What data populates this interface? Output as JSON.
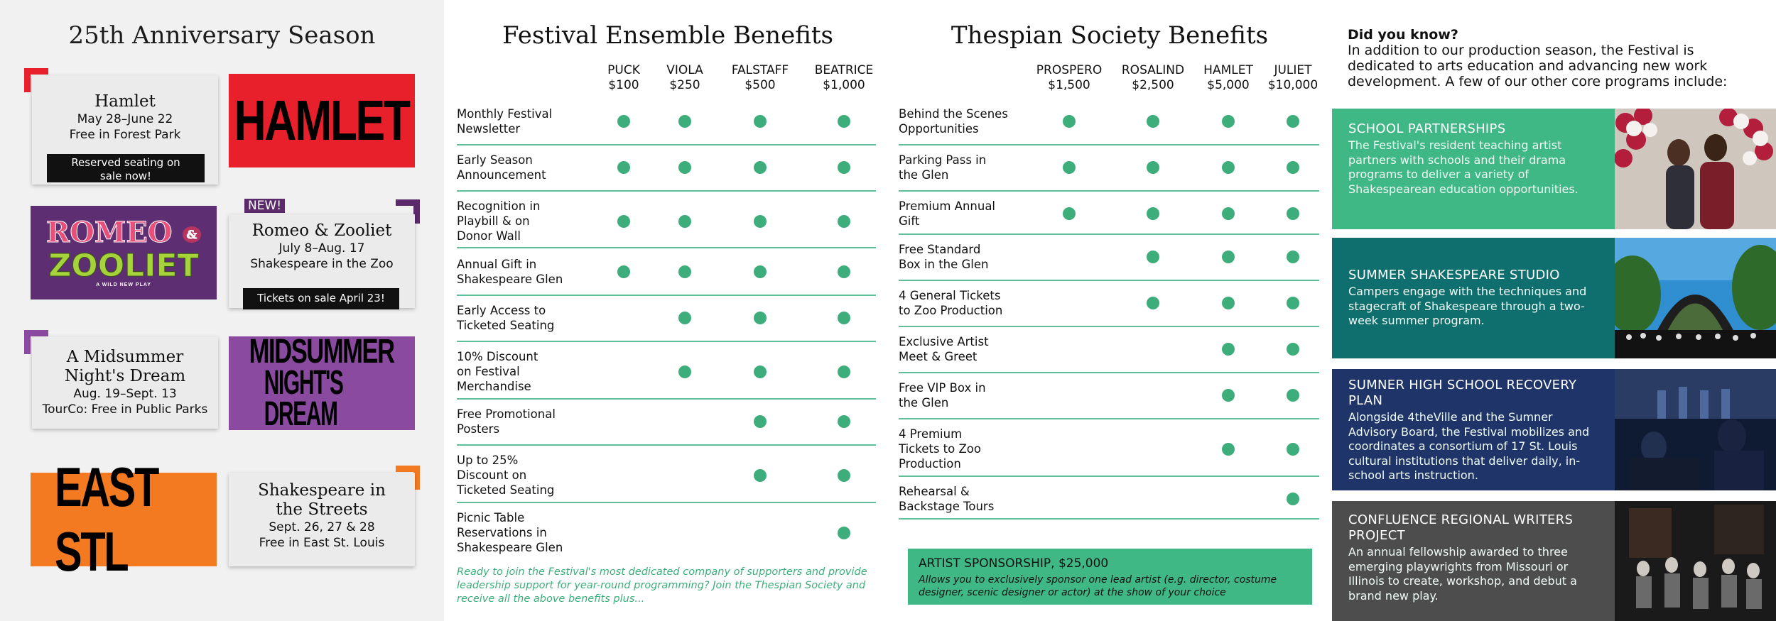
{
  "season": {
    "title": "25th Anniversary Season",
    "shows": [
      {
        "title": "Hamlet",
        "dates": "May 28–June 22",
        "venue": "Free in Forest Park",
        "pill": "Reserved seating on sale now!",
        "poster": "HAMLET"
      },
      {
        "badge": "NEW!",
        "title": "Romeo & Zooliet",
        "dates": "July 8–Aug. 17",
        "venue": "Shakespeare in the Zoo",
        "pill": "Tickets on sale April 23!",
        "poster_line1": "ROMEO",
        "poster_amp": "&",
        "poster_line2": "ZOOLIET",
        "poster_sub": "A WILD NEW PLAY"
      },
      {
        "title_line1": "A Midsummer",
        "title_line2": "Night's Dream",
        "dates": "Aug. 19–Sept. 13",
        "venue": "TourCo: Free in Public Parks",
        "poster_line1": "MIDSUMMER",
        "poster_line2": "NIGHT'S DREAM"
      },
      {
        "title_line1": "Shakespeare in",
        "title_line2": "the Streets",
        "dates": "Sept. 26, 27 & 28",
        "venue": "Free in East St. Louis",
        "poster": "EAST STL"
      }
    ],
    "colors": {
      "red": "#e8202b",
      "purple": "#8a4aa0",
      "orange": "#f47a22",
      "dark_purple": "#5a2a6b"
    }
  },
  "ensemble": {
    "title": "Festival Ensemble Benefits",
    "columns": [
      {
        "name": "PUCK",
        "price": "$100"
      },
      {
        "name": "VIOLA",
        "price": "$250"
      },
      {
        "name": "FALSTAFF",
        "price": "$500"
      },
      {
        "name": "BEATRICE",
        "price": "$1,000"
      }
    ],
    "rows": [
      {
        "label": [
          "Monthly Festival",
          "Newsletter"
        ],
        "tiers": [
          true,
          true,
          true,
          true
        ]
      },
      {
        "label": [
          "Early Season",
          "Announcement"
        ],
        "tiers": [
          true,
          true,
          true,
          true
        ]
      },
      {
        "label": [
          "Recognition in",
          "Playbill & on",
          "Donor Wall"
        ],
        "tiers": [
          true,
          true,
          true,
          true
        ]
      },
      {
        "label": [
          "Annual Gift in",
          "Shakespeare Glen"
        ],
        "tiers": [
          true,
          true,
          true,
          true
        ]
      },
      {
        "label": [
          "Early Access to",
          "Ticketed Seating"
        ],
        "tiers": [
          false,
          true,
          true,
          true
        ]
      },
      {
        "label": [
          "10% Discount",
          "on Festival",
          "Merchandise"
        ],
        "tiers": [
          false,
          true,
          true,
          true
        ]
      },
      {
        "label": [
          "Free Promotional",
          "Posters"
        ],
        "tiers": [
          false,
          false,
          true,
          true
        ]
      },
      {
        "label": [
          "Up to 25%",
          "Discount on",
          "Ticketed Seating"
        ],
        "tiers": [
          false,
          false,
          true,
          true
        ]
      },
      {
        "label": [
          "Picnic Table",
          "Reservations in",
          "Shakespeare Glen"
        ],
        "tiers": [
          false,
          false,
          false,
          true
        ]
      }
    ],
    "cta": "Ready to join the Festival's most dedicated company of supporters and provide leadership support for year-round programming? Join the Thespian Society and receive all the above benefits plus..."
  },
  "thespian": {
    "title": "Thespian Society Benefits",
    "columns": [
      {
        "name": "PROSPERO",
        "price": "$1,500"
      },
      {
        "name": "ROSALIND",
        "price": "$2,500"
      },
      {
        "name": "HAMLET",
        "price": "$5,000"
      },
      {
        "name": "JULIET",
        "price": "$10,000"
      }
    ],
    "rows": [
      {
        "label": [
          "Behind the Scenes",
          "Opportunities"
        ],
        "tiers": [
          true,
          true,
          true,
          true
        ]
      },
      {
        "label": [
          "Parking Pass in",
          "the Glen"
        ],
        "tiers": [
          true,
          true,
          true,
          true
        ]
      },
      {
        "label": [
          "Premium Annual",
          "Gift"
        ],
        "tiers": [
          true,
          true,
          true,
          true
        ]
      },
      {
        "label": [
          "Free Standard",
          "Box in the Glen"
        ],
        "tiers": [
          false,
          true,
          true,
          true
        ]
      },
      {
        "label": [
          "4 General Tickets",
          "to Zoo Production"
        ],
        "tiers": [
          false,
          true,
          true,
          true
        ]
      },
      {
        "label": [
          "Exclusive Artist",
          "Meet & Greet"
        ],
        "tiers": [
          false,
          false,
          true,
          true
        ]
      },
      {
        "label": [
          "Free VIP Box in",
          "the Glen"
        ],
        "tiers": [
          false,
          false,
          true,
          true
        ]
      },
      {
        "label": [
          "4 Premium",
          "Tickets to Zoo",
          "Production"
        ],
        "tiers": [
          false,
          false,
          true,
          true
        ]
      },
      {
        "label": [
          "Rehearsal &",
          "Backstage Tours"
        ],
        "tiers": [
          false,
          false,
          false,
          true
        ]
      }
    ],
    "artist_title": "ARTIST SPONSORSHIP, $25,000",
    "artist_desc": "Allows you to exclusively sponsor one lead artist (e.g. director, costume designer, scenic designer or actor) at the show of your choice"
  },
  "programs": {
    "question": "Did you know?",
    "intro": "In addition to our production season, the Festival is dedicated to arts education and advancing new work development. A few of our other core programs include:",
    "items": [
      {
        "title": "SCHOOL PARTNERSHIPS",
        "desc": "The Festival's resident teaching artist partners with schools and their drama programs to deliver a variety of Shakespearean education opportunities.",
        "color": "#3fb886"
      },
      {
        "title": "SUMMER SHAKESPEARE STUDIO",
        "desc": "Campers engage with the techniques and stagecraft of Shakespeare through a two-week summer program.",
        "color": "#0f6e6e"
      },
      {
        "title": "SUMNER HIGH SCHOOL RECOVERY PLAN",
        "desc": "Alongside 4theVille and the Sumner Advisory Board, the Festival mobilizes and coordinates a consortium of 17 St. Louis cultural institutions that deliver daily, in-school arts instruction.",
        "color": "#1f3569"
      },
      {
        "title": "CONFLUENCE REGIONAL WRITERS PROJECT",
        "desc": "An annual fellowship awarded to three emerging playwrights from Missouri or Illinois to create, workshop, and debut a brand new play.",
        "color": "#4d4d4d"
      }
    ],
    "accent": "#3dae7b"
  }
}
